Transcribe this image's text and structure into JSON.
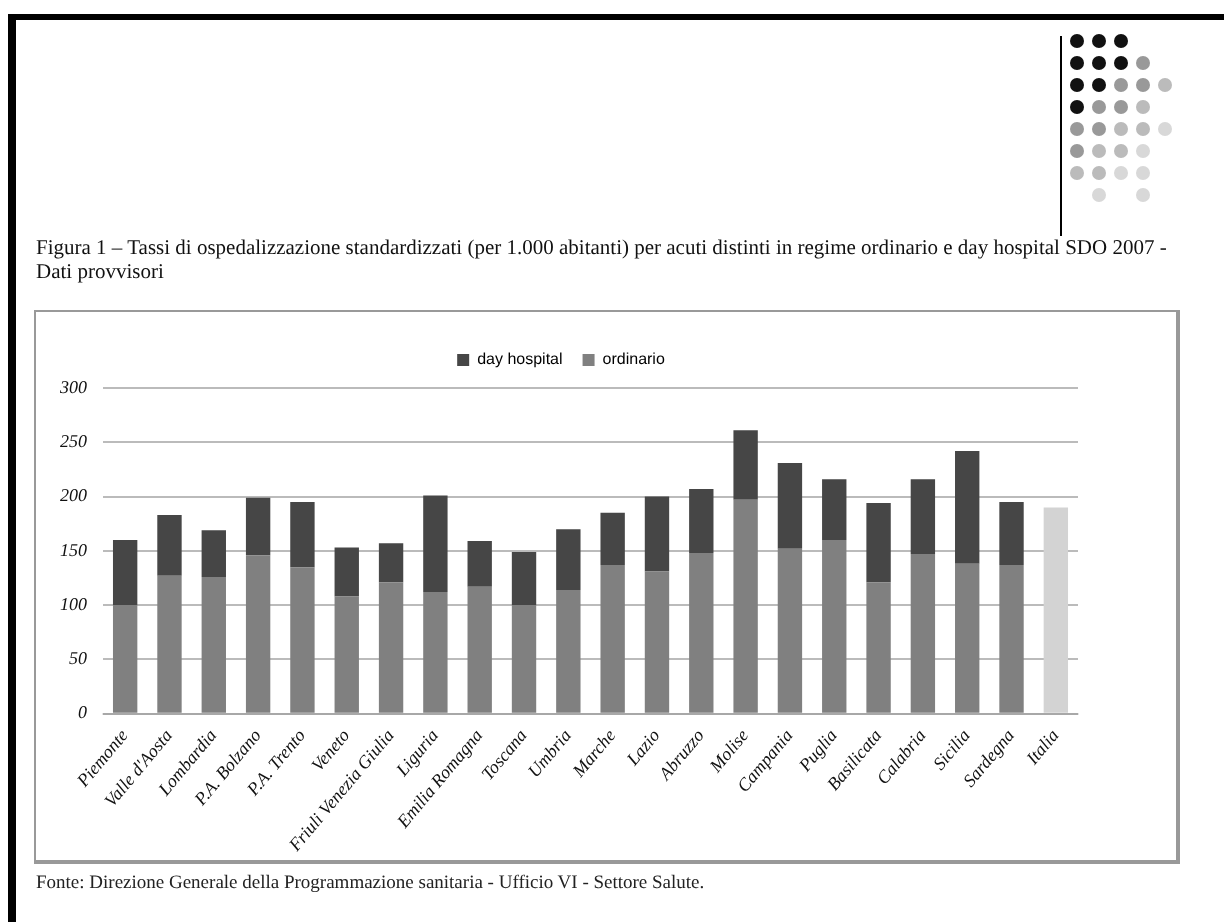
{
  "chart_data": {
    "type": "bar",
    "title": "Figura 1 – Tassi di ospedalizzazione standardizzati (per 1.000 abitanti) per acuti distinti in regime ordinario e day hospital SDO 2007 - Dati provvisori",
    "categories": [
      "Piemonte",
      "Valle d'Aosta",
      "Lombardia",
      "P.A. Bolzano",
      "P.A. Trento",
      "Veneto",
      "Friuli Venezia Giulia",
      "Liguria",
      "Emilia Romagna",
      "Toscana",
      "Umbria",
      "Marche",
      "Lazio",
      "Abruzzo",
      "Molise",
      "Campania",
      "Puglia",
      "Basilicata",
      "Calabria",
      "Sicilia",
      "Sardegna",
      "Italia"
    ],
    "series": [
      {
        "name": "ordinario",
        "color": "#808080",
        "colors": [
          "#808080",
          "#808080",
          "#808080",
          "#808080",
          "#808080",
          "#808080",
          "#808080",
          "#808080",
          "#808080",
          "#808080",
          "#808080",
          "#808080",
          "#808080",
          "#808080",
          "#808080",
          "#808080",
          "#808080",
          "#808080",
          "#808080",
          "#808080",
          "#808080",
          "#d3d3d3"
        ],
        "values": [
          100,
          127,
          126,
          146,
          135,
          108,
          121,
          112,
          117,
          100,
          114,
          137,
          131,
          148,
          197,
          152,
          160,
          121,
          147,
          138,
          137,
          190
        ]
      },
      {
        "name": "day hospital",
        "color": "#464646",
        "values": [
          60,
          56,
          43,
          53,
          60,
          45,
          36,
          89,
          42,
          49,
          56,
          48,
          69,
          59,
          64,
          79,
          56,
          73,
          69,
          104,
          58,
          null
        ]
      }
    ],
    "stacked": true,
    "ylim": [
      0,
      300
    ],
    "yticks": [
      0,
      50,
      100,
      150,
      200,
      250,
      300
    ],
    "grid": "y",
    "legend": "top",
    "annotations": [
      "Fonte: Direzione Generale della Programmazione sanitaria - Ufficio VI - Settore Salute."
    ]
  }
}
